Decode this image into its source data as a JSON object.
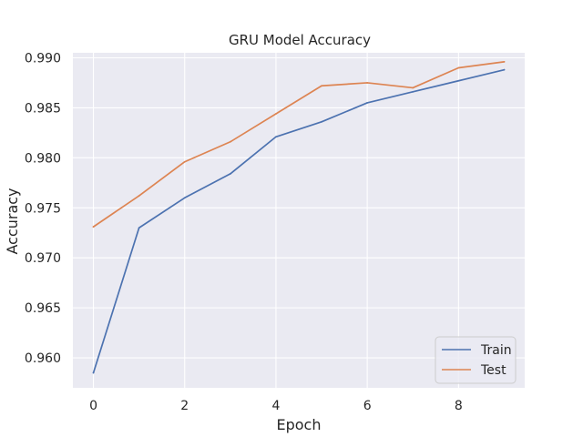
{
  "chart_data": {
    "type": "line",
    "title": "GRU Model Accuracy",
    "xlabel": "Epoch",
    "ylabel": "Accuracy",
    "x": [
      0,
      1,
      2,
      3,
      4,
      5,
      6,
      7,
      8,
      9
    ],
    "x_ticks": [
      0,
      2,
      4,
      6,
      8
    ],
    "x_tick_labels": [
      "0",
      "2",
      "4",
      "6",
      "8"
    ],
    "y_ticks": [
      0.96,
      0.965,
      0.97,
      0.975,
      0.98,
      0.985,
      0.99
    ],
    "y_tick_labels": [
      "0.960",
      "0.965",
      "0.970",
      "0.975",
      "0.980",
      "0.985",
      "0.990"
    ],
    "xlim": [
      -0.45,
      9.45
    ],
    "ylim": [
      0.957,
      0.9905
    ],
    "grid": true,
    "legend_position": "lower-right",
    "colors": {
      "background": "#eaeaf2",
      "grid": "#ffffff",
      "text": "#262626"
    },
    "series": [
      {
        "name": "Train",
        "color": "#4c72b0",
        "values": [
          0.9585,
          0.973,
          0.976,
          0.9784,
          0.9821,
          0.9836,
          0.9855,
          0.9866,
          0.9877,
          0.9888
        ]
      },
      {
        "name": "Test",
        "color": "#dd8452",
        "values": [
          0.9731,
          0.9762,
          0.9796,
          0.9816,
          0.9844,
          0.9872,
          0.9875,
          0.987,
          0.989,
          0.9896
        ]
      }
    ]
  }
}
